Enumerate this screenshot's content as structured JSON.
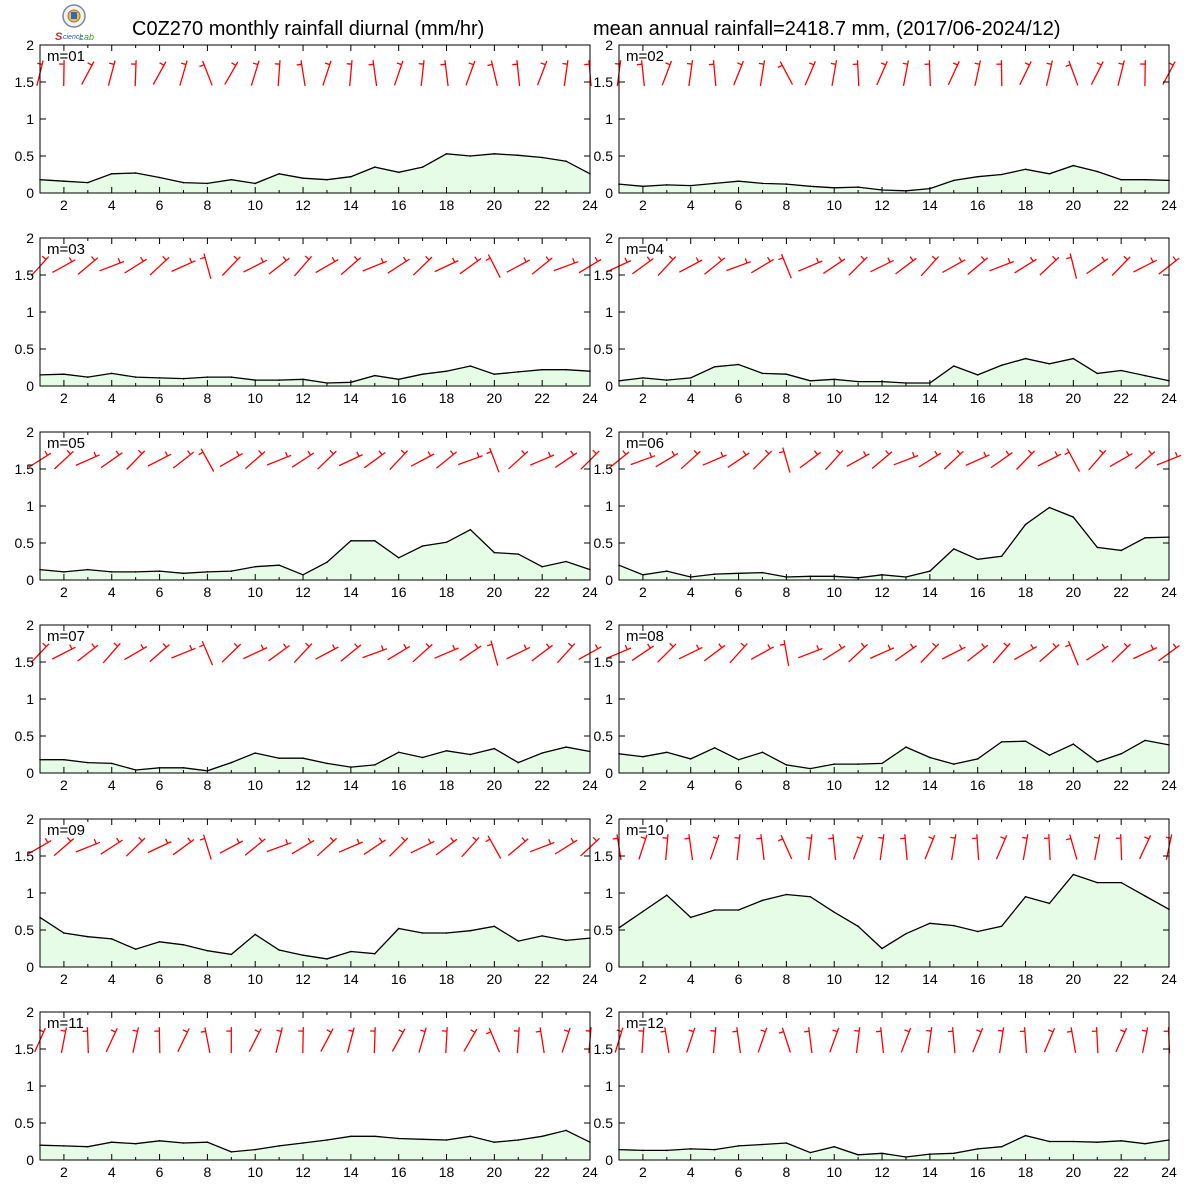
{
  "header": {
    "title_left": "C0Z270 monthly rainfall diurnal (mm/hr)",
    "title_right": "mean annual rainfall=2418.7 mm, (2017/06-2024/12)"
  },
  "logo": {
    "text": "Lab"
  },
  "style": {
    "fill_color": "#e6fce6",
    "line_color": "#000000",
    "barb_color": "#ff0000"
  },
  "chart_data": [
    {
      "type": "area",
      "label": "m=01",
      "x": [
        1,
        2,
        3,
        4,
        5,
        6,
        7,
        8,
        9,
        10,
        11,
        12,
        13,
        14,
        15,
        16,
        17,
        18,
        19,
        20,
        21,
        22,
        23,
        24
      ],
      "values": [
        0.18,
        0.16,
        0.14,
        0.26,
        0.27,
        0.21,
        0.14,
        0.13,
        0.18,
        0.13,
        0.26,
        0.2,
        0.18,
        0.22,
        0.35,
        0.28,
        0.35,
        0.53,
        0.5,
        0.53,
        0.51,
        0.48,
        0.43,
        0.26
      ],
      "xticks": [
        2,
        4,
        6,
        8,
        10,
        12,
        14,
        16,
        18,
        20,
        22,
        24
      ],
      "yticks": [
        0,
        0.5,
        1,
        1.5,
        2
      ],
      "xlim": [
        1,
        24
      ],
      "ylim": [
        0,
        2
      ]
    },
    {
      "type": "area",
      "label": "m=02",
      "x": [
        1,
        2,
        3,
        4,
        5,
        6,
        7,
        8,
        9,
        10,
        11,
        12,
        13,
        14,
        15,
        16,
        17,
        18,
        19,
        20,
        21,
        22,
        23,
        24
      ],
      "values": [
        0.12,
        0.09,
        0.11,
        0.1,
        0.13,
        0.16,
        0.13,
        0.12,
        0.09,
        0.07,
        0.08,
        0.04,
        0.03,
        0.06,
        0.17,
        0.22,
        0.25,
        0.32,
        0.26,
        0.37,
        0.29,
        0.18,
        0.18,
        0.17
      ],
      "xticks": [
        2,
        4,
        6,
        8,
        10,
        12,
        14,
        16,
        18,
        20,
        22,
        24
      ],
      "yticks": [
        0,
        0.5,
        1,
        1.5,
        2
      ],
      "xlim": [
        1,
        24
      ],
      "ylim": [
        0,
        2
      ]
    },
    {
      "type": "area",
      "label": "m=03",
      "x": [
        1,
        2,
        3,
        4,
        5,
        6,
        7,
        8,
        9,
        10,
        11,
        12,
        13,
        14,
        15,
        16,
        17,
        18,
        19,
        20,
        21,
        22,
        23,
        24
      ],
      "values": [
        0.15,
        0.16,
        0.12,
        0.17,
        0.12,
        0.11,
        0.1,
        0.12,
        0.12,
        0.08,
        0.08,
        0.09,
        0.04,
        0.05,
        0.14,
        0.09,
        0.16,
        0.2,
        0.27,
        0.16,
        0.19,
        0.22,
        0.22,
        0.2
      ],
      "xticks": [
        2,
        4,
        6,
        8,
        10,
        12,
        14,
        16,
        18,
        20,
        22,
        24
      ],
      "yticks": [
        0,
        0.5,
        1,
        1.5,
        2
      ],
      "xlim": [
        1,
        24
      ],
      "ylim": [
        0,
        2
      ]
    },
    {
      "type": "area",
      "label": "m=04",
      "x": [
        1,
        2,
        3,
        4,
        5,
        6,
        7,
        8,
        9,
        10,
        11,
        12,
        13,
        14,
        15,
        16,
        17,
        18,
        19,
        20,
        21,
        22,
        23,
        24
      ],
      "values": [
        0.07,
        0.11,
        0.08,
        0.11,
        0.26,
        0.29,
        0.17,
        0.16,
        0.07,
        0.09,
        0.06,
        0.06,
        0.04,
        0.04,
        0.27,
        0.15,
        0.28,
        0.37,
        0.3,
        0.37,
        0.17,
        0.21,
        0.14,
        0.07
      ],
      "xticks": [
        2,
        4,
        6,
        8,
        10,
        12,
        14,
        16,
        18,
        20,
        22,
        24
      ],
      "yticks": [
        0,
        0.5,
        1,
        1.5,
        2
      ],
      "xlim": [
        1,
        24
      ],
      "ylim": [
        0,
        2
      ]
    },
    {
      "type": "area",
      "label": "m=05",
      "x": [
        1,
        2,
        3,
        4,
        5,
        6,
        7,
        8,
        9,
        10,
        11,
        12,
        13,
        14,
        15,
        16,
        17,
        18,
        19,
        20,
        21,
        22,
        23,
        24
      ],
      "values": [
        0.14,
        0.11,
        0.14,
        0.11,
        0.11,
        0.12,
        0.09,
        0.11,
        0.12,
        0.18,
        0.2,
        0.07,
        0.24,
        0.53,
        0.53,
        0.3,
        0.46,
        0.51,
        0.68,
        0.37,
        0.35,
        0.18,
        0.25,
        0.14
      ],
      "xticks": [
        2,
        4,
        6,
        8,
        10,
        12,
        14,
        16,
        18,
        20,
        22,
        24
      ],
      "yticks": [
        0,
        0.5,
        1,
        1.5,
        2
      ],
      "xlim": [
        1,
        24
      ],
      "ylim": [
        0,
        2
      ]
    },
    {
      "type": "area",
      "label": "m=06",
      "x": [
        1,
        2,
        3,
        4,
        5,
        6,
        7,
        8,
        9,
        10,
        11,
        12,
        13,
        14,
        15,
        16,
        17,
        18,
        19,
        20,
        21,
        22,
        23,
        24
      ],
      "values": [
        0.2,
        0.07,
        0.12,
        0.04,
        0.08,
        0.09,
        0.1,
        0.04,
        0.05,
        0.05,
        0.03,
        0.07,
        0.04,
        0.12,
        0.42,
        0.28,
        0.32,
        0.75,
        0.98,
        0.85,
        0.44,
        0.4,
        0.57,
        0.58
      ],
      "xticks": [
        2,
        4,
        6,
        8,
        10,
        12,
        14,
        16,
        18,
        20,
        22,
        24
      ],
      "yticks": [
        0,
        0.5,
        1,
        1.5,
        2
      ],
      "xlim": [
        1,
        24
      ],
      "ylim": [
        0,
        2
      ]
    },
    {
      "type": "area",
      "label": "m=07",
      "x": [
        1,
        2,
        3,
        4,
        5,
        6,
        7,
        8,
        9,
        10,
        11,
        12,
        13,
        14,
        15,
        16,
        17,
        18,
        19,
        20,
        21,
        22,
        23,
        24
      ],
      "values": [
        0.18,
        0.18,
        0.14,
        0.13,
        0.04,
        0.07,
        0.07,
        0.03,
        0.14,
        0.27,
        0.2,
        0.2,
        0.13,
        0.08,
        0.11,
        0.28,
        0.21,
        0.3,
        0.25,
        0.33,
        0.14,
        0.27,
        0.35,
        0.29
      ],
      "xticks": [
        2,
        4,
        6,
        8,
        10,
        12,
        14,
        16,
        18,
        20,
        22,
        24
      ],
      "yticks": [
        0,
        0.5,
        1,
        1.5,
        2
      ],
      "xlim": [
        1,
        24
      ],
      "ylim": [
        0,
        2
      ]
    },
    {
      "type": "area",
      "label": "m=08",
      "x": [
        1,
        2,
        3,
        4,
        5,
        6,
        7,
        8,
        9,
        10,
        11,
        12,
        13,
        14,
        15,
        16,
        17,
        18,
        19,
        20,
        21,
        22,
        23,
        24
      ],
      "values": [
        0.26,
        0.22,
        0.28,
        0.19,
        0.34,
        0.18,
        0.28,
        0.11,
        0.06,
        0.12,
        0.12,
        0.13,
        0.35,
        0.21,
        0.12,
        0.19,
        0.42,
        0.43,
        0.24,
        0.39,
        0.15,
        0.26,
        0.44,
        0.38
      ],
      "xticks": [
        2,
        4,
        6,
        8,
        10,
        12,
        14,
        16,
        18,
        20,
        22,
        24
      ],
      "yticks": [
        0,
        0.5,
        1,
        1.5,
        2
      ],
      "xlim": [
        1,
        24
      ],
      "ylim": [
        0,
        2
      ]
    },
    {
      "type": "area",
      "label": "m=09",
      "x": [
        1,
        2,
        3,
        4,
        5,
        6,
        7,
        8,
        9,
        10,
        11,
        12,
        13,
        14,
        15,
        16,
        17,
        18,
        19,
        20,
        21,
        22,
        23,
        24
      ],
      "values": [
        0.67,
        0.46,
        0.41,
        0.38,
        0.24,
        0.34,
        0.3,
        0.22,
        0.17,
        0.44,
        0.23,
        0.16,
        0.11,
        0.21,
        0.18,
        0.52,
        0.46,
        0.46,
        0.49,
        0.55,
        0.35,
        0.42,
        0.36,
        0.39
      ],
      "xticks": [
        2,
        4,
        6,
        8,
        10,
        12,
        14,
        16,
        18,
        20,
        22,
        24
      ],
      "yticks": [
        0,
        0.5,
        1,
        1.5,
        2
      ],
      "xlim": [
        1,
        24
      ],
      "ylim": [
        0,
        2
      ]
    },
    {
      "type": "area",
      "label": "m=10",
      "x": [
        1,
        2,
        3,
        4,
        5,
        6,
        7,
        8,
        9,
        10,
        11,
        12,
        13,
        14,
        15,
        16,
        17,
        18,
        19,
        20,
        21,
        22,
        23,
        24
      ],
      "values": [
        0.53,
        0.75,
        0.97,
        0.67,
        0.77,
        0.77,
        0.9,
        0.98,
        0.95,
        0.74,
        0.55,
        0.25,
        0.45,
        0.59,
        0.56,
        0.48,
        0.55,
        0.95,
        0.86,
        1.25,
        1.14,
        1.14,
        0.96,
        0.78
      ],
      "xticks": [
        2,
        4,
        6,
        8,
        10,
        12,
        14,
        16,
        18,
        20,
        22,
        24
      ],
      "yticks": [
        0,
        0.5,
        1,
        1.5,
        2
      ],
      "xlim": [
        1,
        24
      ],
      "ylim": [
        0,
        2
      ]
    },
    {
      "type": "area",
      "label": "m=11",
      "x": [
        1,
        2,
        3,
        4,
        5,
        6,
        7,
        8,
        9,
        10,
        11,
        12,
        13,
        14,
        15,
        16,
        17,
        18,
        19,
        20,
        21,
        22,
        23,
        24
      ],
      "values": [
        0.2,
        0.19,
        0.18,
        0.24,
        0.22,
        0.26,
        0.23,
        0.24,
        0.11,
        0.14,
        0.19,
        0.23,
        0.27,
        0.32,
        0.32,
        0.29,
        0.28,
        0.27,
        0.32,
        0.24,
        0.27,
        0.32,
        0.4,
        0.24
      ],
      "xticks": [
        2,
        4,
        6,
        8,
        10,
        12,
        14,
        16,
        18,
        20,
        22,
        24
      ],
      "yticks": [
        0,
        0.5,
        1,
        1.5,
        2
      ],
      "xlim": [
        1,
        24
      ],
      "ylim": [
        0,
        2
      ]
    },
    {
      "type": "area",
      "label": "m=12",
      "x": [
        1,
        2,
        3,
        4,
        5,
        6,
        7,
        8,
        9,
        10,
        11,
        12,
        13,
        14,
        15,
        16,
        17,
        18,
        19,
        20,
        21,
        22,
        23,
        24
      ],
      "values": [
        0.14,
        0.13,
        0.13,
        0.15,
        0.14,
        0.19,
        0.21,
        0.23,
        0.1,
        0.18,
        0.07,
        0.09,
        0.04,
        0.08,
        0.09,
        0.15,
        0.18,
        0.33,
        0.25,
        0.25,
        0.24,
        0.26,
        0.22,
        0.27
      ],
      "xticks": [
        2,
        4,
        6,
        8,
        10,
        12,
        14,
        16,
        18,
        20,
        22,
        24
      ],
      "yticks": [
        0,
        0.5,
        1,
        1.5,
        2
      ],
      "xlim": [
        1,
        24
      ],
      "ylim": [
        0,
        2
      ]
    }
  ]
}
